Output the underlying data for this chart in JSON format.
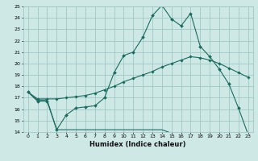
{
  "title": "",
  "xlabel": "Humidex (Indice chaleur)",
  "background_color": "#cde8e5",
  "grid_color": "#a0c8c5",
  "line_color": "#1a6b60",
  "x_values": [
    0,
    1,
    2,
    3,
    4,
    5,
    6,
    7,
    8,
    9,
    10,
    11,
    12,
    13,
    14,
    15,
    16,
    17,
    18,
    19,
    20,
    21,
    22,
    23
  ],
  "line1": [
    17.5,
    16.7,
    16.7,
    14.2,
    15.5,
    16.1,
    16.2,
    16.3,
    17.0,
    19.2,
    20.7,
    21.0,
    22.3,
    24.2,
    25.1,
    23.9,
    23.3,
    24.4,
    21.5,
    20.6,
    19.5,
    18.2,
    16.1,
    13.8
  ],
  "line2": [
    17.5,
    16.9,
    16.9,
    16.9,
    17.0,
    17.1,
    17.2,
    17.4,
    17.7,
    18.0,
    18.4,
    18.7,
    19.0,
    19.3,
    19.7,
    20.0,
    20.3,
    20.6,
    20.5,
    20.3,
    20.0,
    19.6,
    19.2,
    18.8
  ],
  "line3": [
    17.5,
    16.8,
    16.8,
    14.2,
    14.2,
    14.2,
    14.2,
    14.2,
    14.2,
    14.2,
    14.2,
    14.2,
    14.2,
    14.2,
    14.2,
    13.9,
    13.9,
    13.9,
    13.9,
    13.9,
    13.9,
    13.9,
    13.9,
    13.8
  ],
  "ylim": [
    14,
    25
  ],
  "xlim": [
    -0.5,
    23.5
  ],
  "yticks": [
    14,
    15,
    16,
    17,
    18,
    19,
    20,
    21,
    22,
    23,
    24,
    25
  ],
  "xticks": [
    0,
    1,
    2,
    3,
    4,
    5,
    6,
    7,
    8,
    9,
    10,
    11,
    12,
    13,
    14,
    15,
    16,
    17,
    18,
    19,
    20,
    21,
    22,
    23
  ]
}
